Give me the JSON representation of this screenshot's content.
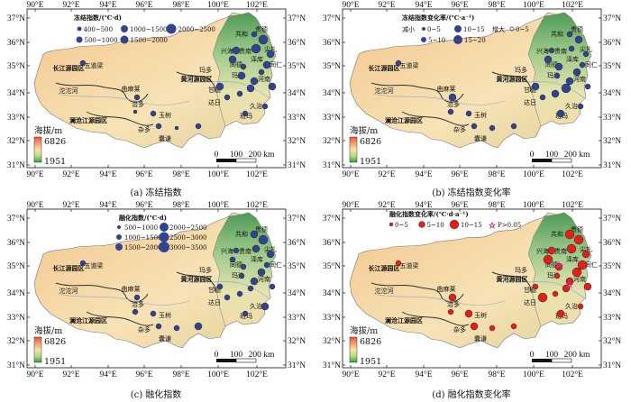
{
  "axes": {
    "lon_labels": [
      "90°E",
      "92°E",
      "94°E",
      "96°E",
      "98°E",
      "100°E",
      "102°E"
    ],
    "lat_labels": [
      "37°N",
      "36°N",
      "35°N",
      "34°N",
      "33°N",
      "32°N",
      "31°N"
    ]
  },
  "place_labels": {
    "jiangyuan_zone": "长江源园区",
    "yellow_zone": "黄河源园区",
    "lancang_zone": "澜沧江源园区",
    "wudaoliang": "五道梁",
    "tuotuohe": "沱沱河",
    "qumalai": "曲麻莱",
    "zhiduo": "治多",
    "yushu": "玉树",
    "zaduo": "杂多",
    "nangqian": "囊谦",
    "maduo": "玛多",
    "qingshuihe": "清水河",
    "gande": "甘德",
    "dari": "达日",
    "jiuzhi": "久治",
    "banma": "班玛",
    "maqin": "玛沁",
    "tongde": "同德",
    "henan": "河南",
    "zeku": "泽库",
    "xinghai": "兴海",
    "guinan": "贵南",
    "gonghe": "共和",
    "guide": "贵德",
    "jianzha": "尖扎",
    "tongren": "同仁"
  },
  "elevation": {
    "title": "海拔/m",
    "max": "6826",
    "min": "1951"
  },
  "scalebar": {
    "labels": [
      "0",
      "100",
      "200 km"
    ]
  },
  "panels": [
    {
      "caption": "(a) 冻结指数",
      "legend_title": "冻结指数/(℃·d)",
      "legend_items": [
        "400~500",
        "1000~1500",
        "2000~2500",
        "500~1000",
        "1500~2000"
      ],
      "symbol_color": "#33448f"
    },
    {
      "caption": "(b) 冻结指数变化率",
      "legend_title": "冻结指数变化率/(℃·a⁻¹)",
      "legend_items": [
        "减小",
        "0~5",
        "10~15",
        "增大",
        "0~5",
        "5~10",
        "15~20"
      ],
      "symbol_color": "#33448f"
    },
    {
      "caption": "(c) 融化指数",
      "legend_title": "融化指数/(℃·d)",
      "legend_items": [
        "500~1000",
        "2000~2500",
        "1000~1500",
        "2500~3000",
        "1500~2000",
        "3000~3500"
      ],
      "symbol_color": "#33448f"
    },
    {
      "caption": "(d) 融化指数变化率",
      "legend_title": "融化指数变化率/(℃·d·a⁻¹)",
      "legend_items": [
        "0~5",
        "5~10",
        "10~15",
        "P>0.05"
      ],
      "symbol_color": "#e0201b"
    }
  ]
}
